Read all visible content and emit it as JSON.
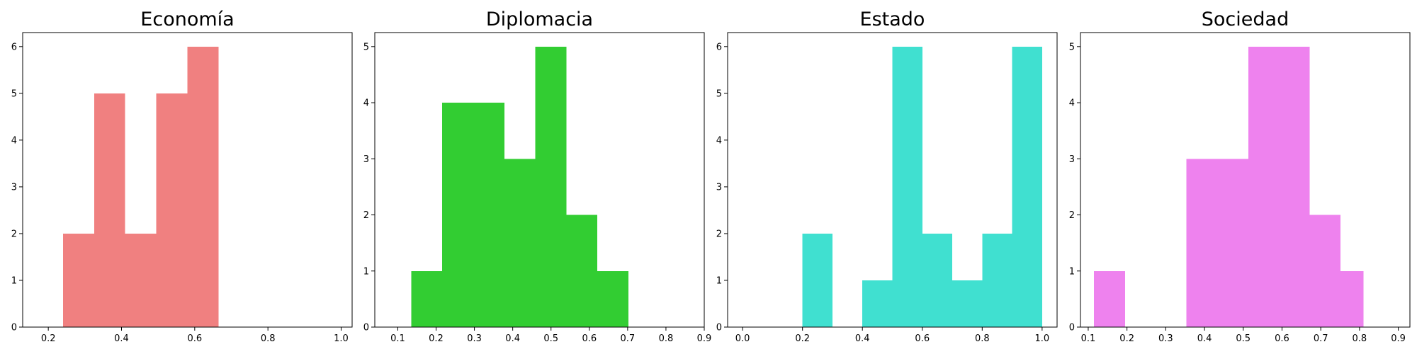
{
  "chart_data": [
    {
      "type": "bar",
      "title": "Economía",
      "color": "#f08080",
      "xlim": [
        0.13,
        1.03
      ],
      "ylim": [
        0,
        6.3
      ],
      "xticks": [
        "0.2",
        "0.4",
        "0.6",
        "0.8",
        "1.0"
      ],
      "yticks": [
        "0",
        "1",
        "2",
        "3",
        "4",
        "5",
        "6"
      ],
      "bins": [
        {
          "x0": 0.24,
          "x1": 0.325,
          "count": 2
        },
        {
          "x0": 0.325,
          "x1": 0.41,
          "count": 5
        },
        {
          "x0": 0.41,
          "x1": 0.495,
          "count": 2
        },
        {
          "x0": 0.495,
          "x1": 0.58,
          "count": 5
        },
        {
          "x0": 0.58,
          "x1": 0.665,
          "count": 6
        }
      ]
    },
    {
      "type": "bar",
      "title": "Diplomacia",
      "color": "#32cd32",
      "xlim": [
        0.04,
        0.9
      ],
      "ylim": [
        0,
        5.25
      ],
      "xticks": [
        "0.1",
        "0.2",
        "0.3",
        "0.4",
        "0.5",
        "0.6",
        "0.7",
        "0.8",
        "0.9"
      ],
      "yticks": [
        "0",
        "1",
        "2",
        "3",
        "4",
        "5"
      ],
      "bins": [
        {
          "x0": 0.135,
          "x1": 0.216,
          "count": 1
        },
        {
          "x0": 0.216,
          "x1": 0.297,
          "count": 4
        },
        {
          "x0": 0.297,
          "x1": 0.378,
          "count": 4
        },
        {
          "x0": 0.378,
          "x1": 0.459,
          "count": 3
        },
        {
          "x0": 0.459,
          "x1": 0.54,
          "count": 5
        },
        {
          "x0": 0.54,
          "x1": 0.621,
          "count": 2
        },
        {
          "x0": 0.621,
          "x1": 0.702,
          "count": 1
        }
      ]
    },
    {
      "type": "bar",
      "title": "Estado",
      "color": "#40e0d0",
      "xlim": [
        -0.05,
        1.05
      ],
      "ylim": [
        0,
        6.3
      ],
      "xticks": [
        "0.0",
        "0.2",
        "0.4",
        "0.6",
        "0.8",
        "1.0"
      ],
      "yticks": [
        "0",
        "1",
        "2",
        "3",
        "4",
        "5",
        "6"
      ],
      "bins": [
        {
          "x0": 0.2,
          "x1": 0.3,
          "count": 2
        },
        {
          "x0": 0.4,
          "x1": 0.5,
          "count": 1
        },
        {
          "x0": 0.5,
          "x1": 0.6,
          "count": 6
        },
        {
          "x0": 0.6,
          "x1": 0.7,
          "count": 2
        },
        {
          "x0": 0.7,
          "x1": 0.8,
          "count": 1
        },
        {
          "x0": 0.8,
          "x1": 0.9,
          "count": 2
        },
        {
          "x0": 0.9,
          "x1": 1.0,
          "count": 6
        }
      ]
    },
    {
      "type": "bar",
      "title": "Sociedad",
      "color": "#ee82ee",
      "xlim": [
        0.08,
        0.93
      ],
      "ylim": [
        0,
        5.25
      ],
      "xticks": [
        "0.1",
        "0.2",
        "0.3",
        "0.4",
        "0.5",
        "0.6",
        "0.7",
        "0.8",
        "0.9"
      ],
      "yticks": [
        "0",
        "1",
        "2",
        "3",
        "4",
        "5"
      ],
      "bins": [
        {
          "x0": 0.115,
          "x1": 0.195,
          "count": 1
        },
        {
          "x0": 0.353,
          "x1": 0.433,
          "count": 3
        },
        {
          "x0": 0.433,
          "x1": 0.513,
          "count": 3
        },
        {
          "x0": 0.513,
          "x1": 0.591,
          "count": 5
        },
        {
          "x0": 0.591,
          "x1": 0.671,
          "count": 5
        },
        {
          "x0": 0.671,
          "x1": 0.751,
          "count": 2
        },
        {
          "x0": 0.751,
          "x1": 0.81,
          "count": 1
        }
      ]
    }
  ]
}
